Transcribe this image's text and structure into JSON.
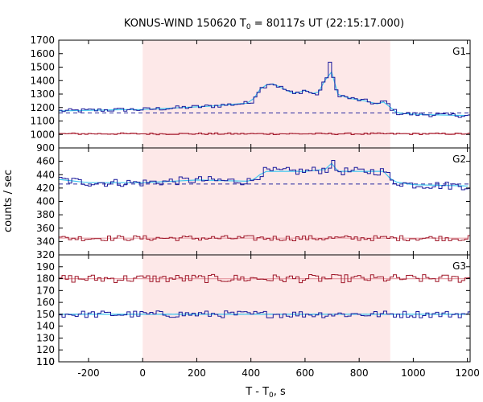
{
  "chart_data": {
    "type": "line",
    "title_main": "KONUS-WIND 150620 T",
    "title_sub": "0",
    "title_rest": " = 80117s UT (22:15:17.000)",
    "xlabel_main": "T - T",
    "xlabel_sub": "0",
    "xlabel_rest": ", s",
    "ylabel": "counts / sec",
    "xlim": [
      -310,
      1210
    ],
    "x_ticks": [
      -200,
      0,
      200,
      400,
      600,
      800,
      1000,
      1200
    ],
    "shaded_interval": [
      0,
      915
    ],
    "colors": {
      "shade": "#fde8e8",
      "g_dark": "#1a1a9c",
      "g_light": "#40c8f0",
      "g_red": "#a0182a",
      "g_pink": "#e8a0a8",
      "bg_dash": "#2a2aa0"
    },
    "panels": [
      {
        "label": "G1",
        "ylim": [
          900,
          1700
        ],
        "y_ticks": [
          1000,
          1100,
          1200,
          1300,
          1400,
          1500,
          1600,
          1700
        ],
        "y_tick_labels": [
          "1000",
          "1100",
          "1200",
          "1300",
          "1400",
          "1500",
          "1600",
          "1700"
        ],
        "background_level": 1160,
        "series": [
          {
            "name": "",
            "color_key": "g_dark",
            "baseline": 1175,
            "noise": 15,
            "segments": [
              [
                -310,
                1175
              ],
              [
                -50,
                1185
              ],
              [
                0,
                1185
              ],
              [
                100,
                1195
              ],
              [
                250,
                1210
              ],
              [
                400,
                1235
              ],
              [
                430,
                1330
              ],
              [
                470,
                1385
              ],
              [
                500,
                1360
              ],
              [
                560,
                1300
              ],
              [
                600,
                1330
              ],
              [
                640,
                1290
              ],
              [
                660,
                1340
              ],
              [
                680,
                1430
              ],
              [
                690,
                1560
              ],
              [
                700,
                1440
              ],
              [
                720,
                1300
              ],
              [
                760,
                1270
              ],
              [
                820,
                1250
              ],
              [
                870,
                1225
              ],
              [
                900,
                1250
              ],
              [
                915,
                1200
              ],
              [
                940,
                1160
              ],
              [
                1000,
                1150
              ],
              [
                1210,
                1140
              ]
            ]
          },
          {
            "name": "",
            "color_key": "g_red",
            "baseline": 1005,
            "noise": 7,
            "segments": [
              [
                -310,
                1005
              ],
              [
                1210,
                1005
              ]
            ]
          }
        ]
      },
      {
        "label": "G2",
        "ylim": [
          320,
          480
        ],
        "y_ticks": [
          340,
          360,
          380,
          400,
          420,
          440,
          460
        ],
        "y_tick_labels": [
          "340",
          "360",
          "380",
          "400",
          "420",
          "440",
          "460"
        ],
        "background_level": 426,
        "series": [
          {
            "name": "",
            "color_key": "g_dark",
            "baseline": 428,
            "noise": 6,
            "segments": [
              [
                -310,
                433
              ],
              [
                -200,
                428
              ],
              [
                0,
                428
              ],
              [
                200,
                432
              ],
              [
                400,
                430
              ],
              [
                450,
                445
              ],
              [
                600,
                445
              ],
              [
                680,
                448
              ],
              [
                700,
                458
              ],
              [
                720,
                445
              ],
              [
                900,
                445
              ],
              [
                920,
                430
              ],
              [
                1000,
                425
              ],
              [
                1210,
                423
              ]
            ]
          },
          {
            "name": "",
            "color_key": "g_red",
            "baseline": 345,
            "noise": 4,
            "segments": [
              [
                -310,
                345
              ],
              [
                1210,
                345
              ]
            ]
          }
        ]
      },
      {
        "label": "G3",
        "ylim": [
          110,
          200
        ],
        "y_ticks": [
          110,
          120,
          130,
          140,
          150,
          160,
          170,
          180,
          190
        ],
        "y_tick_labels": [
          "110",
          "120",
          "130",
          "140",
          "150",
          "160",
          "170",
          "180",
          "190"
        ],
        "background_level": 150,
        "series": [
          {
            "name": "",
            "color_key": "g_red",
            "baseline": 180,
            "noise": 3.5,
            "segments": [
              [
                -310,
                180
              ],
              [
                1210,
                180
              ]
            ]
          },
          {
            "name": "",
            "color_key": "g_dark",
            "baseline": 150,
            "noise": 3,
            "segments": [
              [
                -310,
                150
              ],
              [
                1210,
                150
              ]
            ]
          }
        ]
      }
    ]
  }
}
